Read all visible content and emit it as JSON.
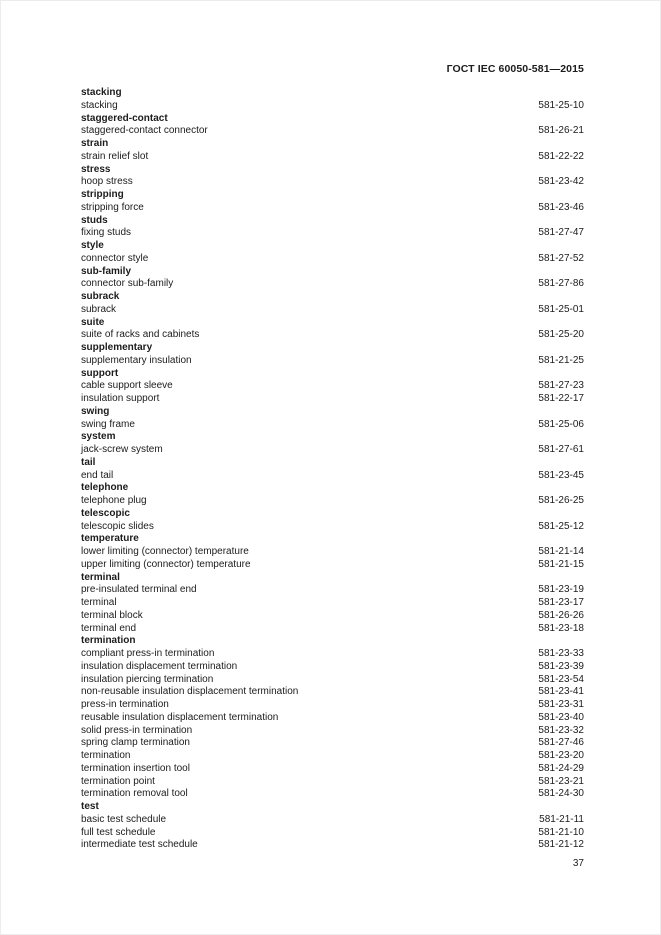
{
  "header": {
    "title": "ГОСТ IEC 60050-581—2015"
  },
  "footer": {
    "page_number": "37"
  },
  "index": {
    "groups": [
      {
        "headword": "stacking",
        "entries": [
          {
            "term": "stacking",
            "code": "581-25-10"
          }
        ]
      },
      {
        "headword": "staggered-contact",
        "entries": [
          {
            "term": "staggered-contact connector",
            "code": "581-26-21"
          }
        ]
      },
      {
        "headword": "strain",
        "entries": [
          {
            "term": "strain relief slot",
            "code": "581-22-22"
          }
        ]
      },
      {
        "headword": "stress",
        "entries": [
          {
            "term": "hoop stress",
            "code": "581-23-42"
          }
        ]
      },
      {
        "headword": "stripping",
        "entries": [
          {
            "term": "stripping force",
            "code": "581-23-46"
          }
        ]
      },
      {
        "headword": "studs",
        "entries": [
          {
            "term": "fixing studs",
            "code": "581-27-47"
          }
        ]
      },
      {
        "headword": "style",
        "entries": [
          {
            "term": "connector style",
            "code": "581-27-52"
          }
        ]
      },
      {
        "headword": "sub-family",
        "entries": [
          {
            "term": "connector sub-family",
            "code": "581-27-86"
          }
        ]
      },
      {
        "headword": "subrack",
        "entries": [
          {
            "term": "subrack",
            "code": "581-25-01"
          }
        ]
      },
      {
        "headword": "suite",
        "entries": [
          {
            "term": "suite of racks and cabinets",
            "code": "581-25-20"
          }
        ]
      },
      {
        "headword": "supplementary",
        "entries": [
          {
            "term": "supplementary insulation",
            "code": "581-21-25"
          }
        ]
      },
      {
        "headword": "support",
        "entries": [
          {
            "term": "cable support sleeve",
            "code": "581-27-23"
          },
          {
            "term": "insulation support",
            "code": "581-22-17"
          }
        ]
      },
      {
        "headword": "swing",
        "entries": [
          {
            "term": "swing frame",
            "code": "581-25-06"
          }
        ]
      },
      {
        "headword": "system",
        "entries": [
          {
            "term": "jack-screw system",
            "code": "581-27-61"
          }
        ]
      },
      {
        "headword": "tail",
        "entries": [
          {
            "term": "end tail",
            "code": "581-23-45"
          }
        ]
      },
      {
        "headword": "telephone",
        "entries": [
          {
            "term": "telephone plug",
            "code": "581-26-25"
          }
        ]
      },
      {
        "headword": "telescopic",
        "entries": [
          {
            "term": "telescopic slides",
            "code": "581-25-12"
          }
        ]
      },
      {
        "headword": "temperature",
        "entries": [
          {
            "term": "lower limiting (connector) temperature",
            "code": "581-21-14"
          },
          {
            "term": "upper limiting (connector) temperature",
            "code": "581-21-15"
          }
        ]
      },
      {
        "headword": "terminal",
        "entries": [
          {
            "term": "pre-insulated terminal end",
            "code": "581-23-19"
          },
          {
            "term": "terminal",
            "code": "581-23-17"
          },
          {
            "term": "terminal block",
            "code": "581-26-26"
          },
          {
            "term": "terminal end",
            "code": "581-23-18"
          }
        ]
      },
      {
        "headword": "termination",
        "entries": [
          {
            "term": "compliant press-in termination",
            "code": "581-23-33"
          },
          {
            "term": "insulation displacement termination",
            "code": "581-23-39"
          },
          {
            "term": "insulation piercing termination",
            "code": "581-23-54"
          },
          {
            "term": "non-reusable insulation displacement termination",
            "code": "581-23-41"
          },
          {
            "term": "press-in termination",
            "code": "581-23-31"
          },
          {
            "term": "reusable insulation displacement termination",
            "code": "581-23-40"
          },
          {
            "term": "solid press-in termination",
            "code": "581-23-32"
          },
          {
            "term": "spring clamp termination",
            "code": "581-27-46"
          },
          {
            "term": "termination",
            "code": "581-23-20"
          },
          {
            "term": "termination insertion tool",
            "code": "581-24-29"
          },
          {
            "term": "termination point",
            "code": "581-23-21"
          },
          {
            "term": "termination removal tool",
            "code": "581-24-30"
          }
        ]
      },
      {
        "headword": "test",
        "entries": [
          {
            "term": "basic test schedule",
            "code": "581-21-11"
          },
          {
            "term": "full test schedule",
            "code": "581-21-10"
          },
          {
            "term": "intermediate test schedule",
            "code": "581-21-12"
          }
        ]
      }
    ]
  }
}
